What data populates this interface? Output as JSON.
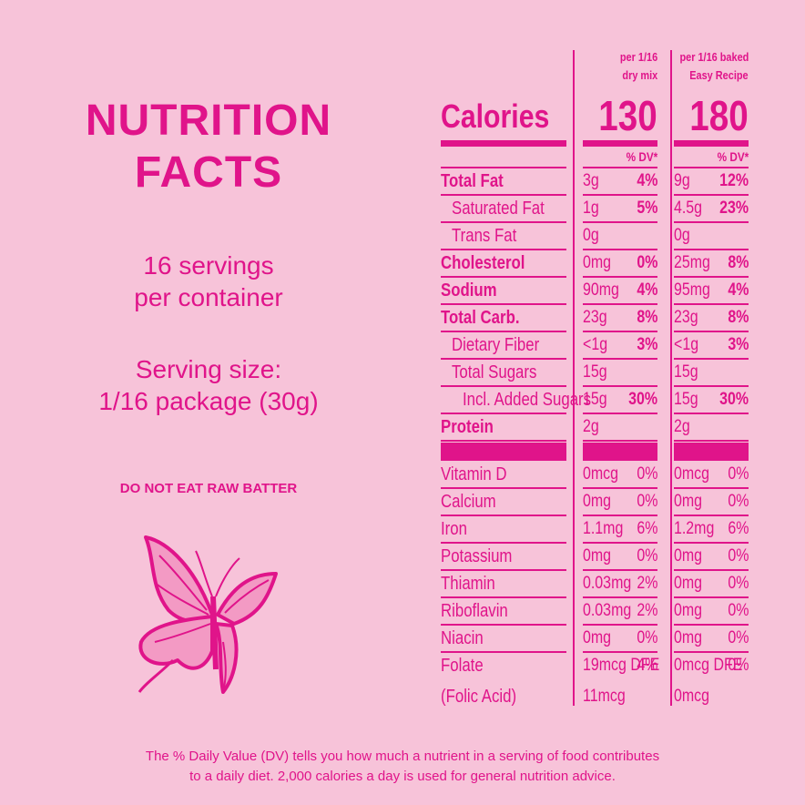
{
  "left": {
    "title_lines": [
      "NUTRITION",
      "FACTS"
    ],
    "servings_lines": [
      "16 servings",
      "per container"
    ],
    "serving_size_lines": [
      "Serving size:",
      "1/16 package (30g)"
    ],
    "warning": "DO NOT EAT RAW BATTER"
  },
  "table": {
    "calories_label": "Calories",
    "dv_header": "% DV*",
    "columns": [
      {
        "header_lines": [
          "per 1/16",
          "dry mix"
        ],
        "calories": 130
      },
      {
        "header_lines": [
          "per 1/16 baked",
          "Easy Recipe"
        ],
        "calories": 180
      }
    ],
    "nutrients": [
      {
        "name": "Total Fat",
        "indent": 0,
        "cells": [
          {
            "amount": "3g",
            "dv": "4%"
          },
          {
            "amount": "9g",
            "dv": "12%"
          }
        ]
      },
      {
        "name": "Saturated Fat",
        "indent": 1,
        "cells": [
          {
            "amount": "1g",
            "dv": "5%"
          },
          {
            "amount": "4.5g",
            "dv": "23%"
          }
        ]
      },
      {
        "name": "Trans Fat",
        "indent": 1,
        "cells": [
          {
            "amount": "0g"
          },
          {
            "amount": "0g"
          }
        ]
      },
      {
        "name": "Cholesterol",
        "indent": 0,
        "cells": [
          {
            "amount": "0mg",
            "dv": "0%"
          },
          {
            "amount": "25mg",
            "dv": "8%"
          }
        ]
      },
      {
        "name": "Sodium",
        "indent": 0,
        "cells": [
          {
            "amount": "90mg",
            "dv": "4%"
          },
          {
            "amount": "95mg",
            "dv": "4%"
          }
        ]
      },
      {
        "name": "Total Carb.",
        "indent": 0,
        "cells": [
          {
            "amount": "23g",
            "dv": "8%"
          },
          {
            "amount": "23g",
            "dv": "8%"
          }
        ]
      },
      {
        "name": "Dietary Fiber",
        "indent": 1,
        "cells": [
          {
            "amount": "<1g",
            "dv": "3%"
          },
          {
            "amount": "<1g",
            "dv": "3%"
          }
        ]
      },
      {
        "name": "Total Sugars",
        "indent": 1,
        "cells": [
          {
            "amount": "15g"
          },
          {
            "amount": "15g"
          }
        ]
      },
      {
        "name": "Incl. Added Sugars",
        "indent": 2,
        "cells": [
          {
            "amount": "15g",
            "dv": "30%"
          },
          {
            "amount": "15g",
            "dv": "30%"
          }
        ]
      },
      {
        "name": "Protein",
        "indent": 0,
        "cells": [
          {
            "amount": "2g"
          },
          {
            "amount": "2g"
          }
        ]
      }
    ],
    "vitamins_minerals": [
      {
        "name": "Vitamin D",
        "cells": [
          {
            "amount": "0mcg",
            "dv": "0%"
          },
          {
            "amount": "0mcg",
            "dv": "0%"
          }
        ]
      },
      {
        "name": "Calcium",
        "cells": [
          {
            "amount": "0mg",
            "dv": "0%"
          },
          {
            "amount": "0mg",
            "dv": "0%"
          }
        ]
      },
      {
        "name": "Iron",
        "cells": [
          {
            "amount": "1.1mg",
            "dv": "6%"
          },
          {
            "amount": "1.2mg",
            "dv": "6%"
          }
        ]
      },
      {
        "name": "Potassium",
        "cells": [
          {
            "amount": "0mg",
            "dv": "0%"
          },
          {
            "amount": "0mg",
            "dv": "0%"
          }
        ]
      },
      {
        "name": "Thiamin",
        "cells": [
          {
            "amount": "0.03mg",
            "dv": "2%"
          },
          {
            "amount": "0mg",
            "dv": "0%"
          }
        ]
      },
      {
        "name": "Riboflavin",
        "cells": [
          {
            "amount": "0.03mg",
            "dv": "2%"
          },
          {
            "amount": "0mg",
            "dv": "0%"
          }
        ]
      },
      {
        "name": "Niacin",
        "cells": [
          {
            "amount": "0mg",
            "dv": "0%"
          },
          {
            "amount": "0mg",
            "dv": "0%"
          }
        ]
      },
      {
        "name": "Folate",
        "cells": [
          {
            "amount": "19mcg DFE",
            "dv": "4%"
          },
          {
            "amount": "0mcg DFE",
            "dv": "0%"
          }
        ]
      },
      {
        "name": "(Folic Acid)",
        "cells": [
          {
            "amount": "11mcg"
          },
          {
            "amount": "0mcg"
          }
        ]
      }
    ]
  },
  "footnote_lines": [
    "The % Daily Value (DV) tells you how much a nutrient in a serving of food contributes",
    "to a daily diet. 2,000 calories a day is used for general nutrition advice."
  ]
}
